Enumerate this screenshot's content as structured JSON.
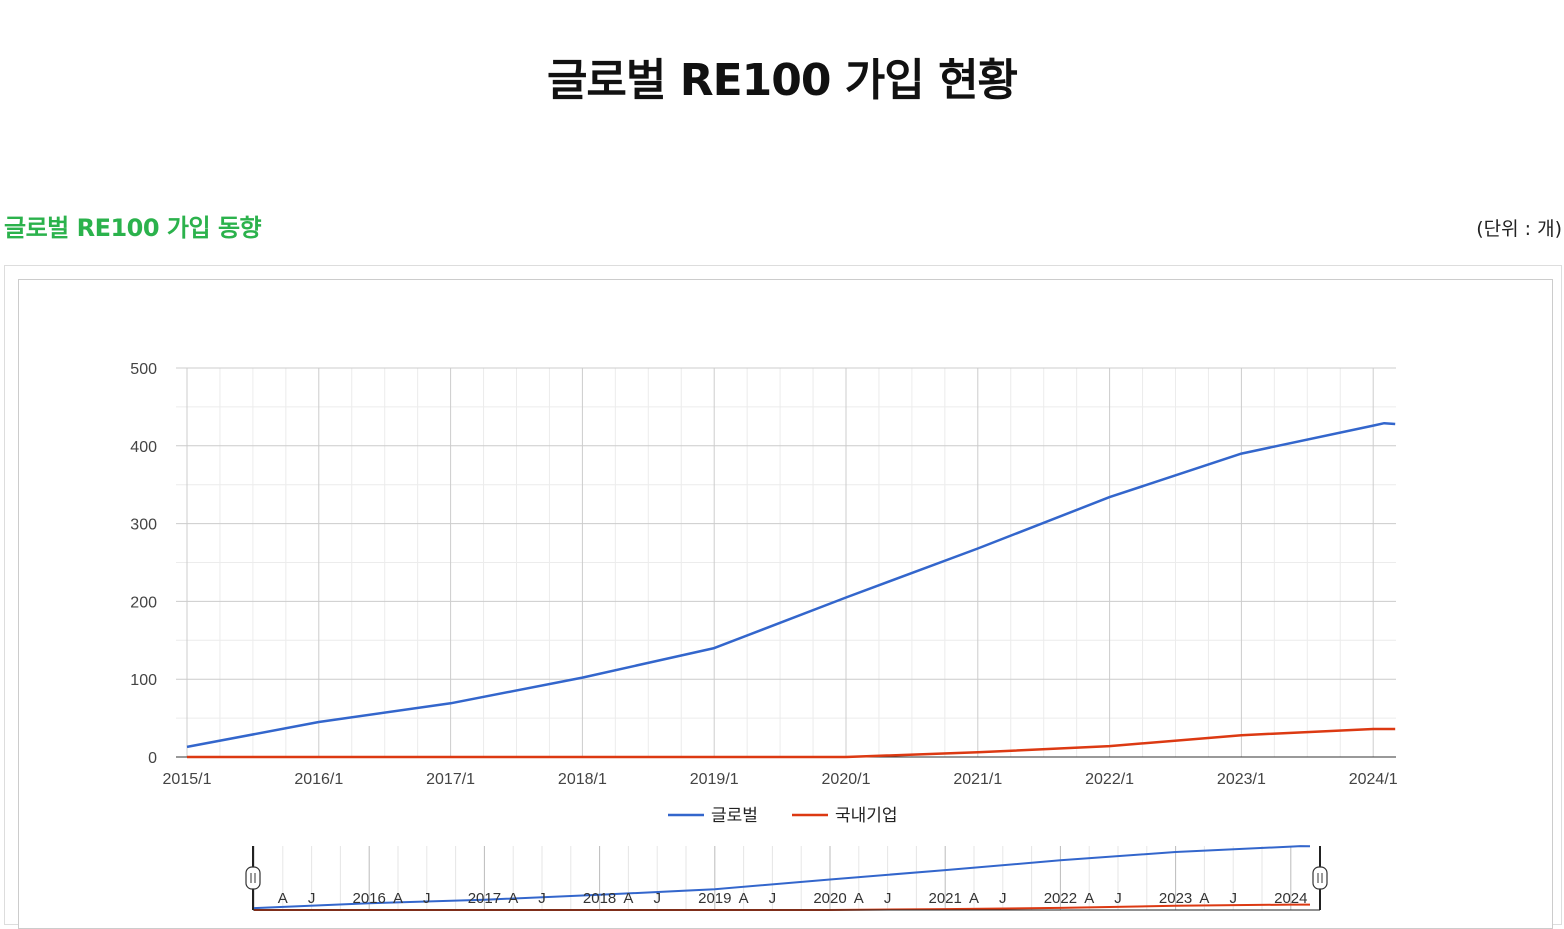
{
  "page": {
    "title": "글로벌 RE100 가입 현황",
    "section_title": "글로벌 RE100 가입 동향",
    "unit_note": "(단위 : 개)"
  },
  "colors": {
    "global": "#3366cc",
    "domestic": "#dc3912",
    "section_title": "#2bb24c"
  },
  "chart_data": {
    "type": "line",
    "title": "",
    "xlabel": "",
    "ylabel": "",
    "ylim": [
      0,
      500
    ],
    "xlim": [
      "2015-01",
      "2024-03"
    ],
    "yticks": [
      0,
      100,
      200,
      300,
      400,
      500
    ],
    "xticks": [
      "2015/1",
      "2016/1",
      "2017/1",
      "2018/1",
      "2019/1",
      "2020/1",
      "2021/1",
      "2022/1",
      "2023/1",
      "2024/1"
    ],
    "grid": true,
    "legend_position": "bottom",
    "series": [
      {
        "name": "글로벌",
        "color": "#3366cc",
        "points": [
          [
            "2015-01",
            13
          ],
          [
            "2016-01",
            45
          ],
          [
            "2017-01",
            69
          ],
          [
            "2018-01",
            102
          ],
          [
            "2019-01",
            140
          ],
          [
            "2020-01",
            205
          ],
          [
            "2021-01",
            268
          ],
          [
            "2022-01",
            334
          ],
          [
            "2023-01",
            390
          ],
          [
            "2024-01",
            426
          ],
          [
            "2024-02",
            429
          ],
          [
            "2024-03",
            428
          ]
        ]
      },
      {
        "name": "국내기업",
        "color": "#dc3912",
        "points": [
          [
            "2015-01",
            0
          ],
          [
            "2016-01",
            0
          ],
          [
            "2017-01",
            0
          ],
          [
            "2018-01",
            0
          ],
          [
            "2019-01",
            0
          ],
          [
            "2020-01",
            0
          ],
          [
            "2021-01",
            6
          ],
          [
            "2022-01",
            14
          ],
          [
            "2023-01",
            28
          ],
          [
            "2024-01",
            36
          ],
          [
            "2024-02",
            36
          ],
          [
            "2024-03",
            36
          ]
        ]
      }
    ],
    "range_selector": {
      "labels": [
        "A",
        "J",
        "2016",
        "A",
        "J",
        "2017",
        "A",
        "J",
        "2018",
        "A",
        "J",
        "2019",
        "A",
        "J",
        "2020",
        "A",
        "J",
        "2021",
        "A",
        "J",
        "2022",
        "A",
        "J",
        "2023",
        "A",
        "J",
        "2024"
      ],
      "handles": [
        "start-handle",
        "end-handle"
      ]
    }
  }
}
